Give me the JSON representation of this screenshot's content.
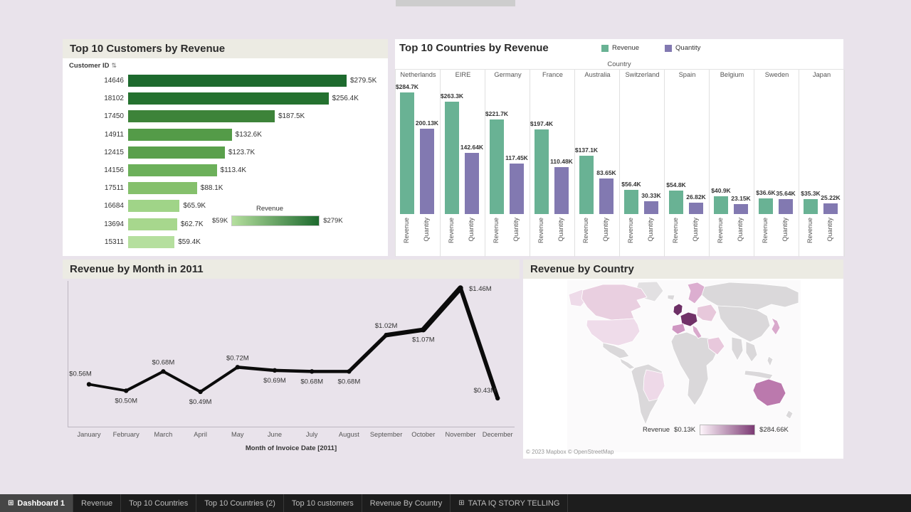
{
  "page": {
    "background": "#e9e3eb",
    "panel_bg": "#ffffff",
    "band_bg": "#ecebe3"
  },
  "icons": {
    "grid": "⊞",
    "sort": "⇅"
  },
  "chart_data": [
    {
      "id": "top-customers",
      "type": "bar",
      "orientation": "horizontal",
      "title": "Top 10 Customers by Revenue",
      "axis_field": "Customer ID",
      "categories": [
        "14646",
        "18102",
        "17450",
        "14911",
        "12415",
        "14156",
        "17511",
        "16684",
        "13694",
        "15311"
      ],
      "values": [
        279.5,
        256.4,
        187.5,
        132.6,
        123.7,
        113.4,
        88.1,
        65.9,
        62.7,
        59.4
      ],
      "value_labels": [
        "$279.5K",
        "$256.4K",
        "$187.5K",
        "$132.6K",
        "$123.7K",
        "$113.4K",
        "$88.1K",
        "$65.9K",
        "$62.7K",
        "$59.4K"
      ],
      "xmax": 279.5,
      "bar_colors": [
        "#1d6a2e",
        "#24712f",
        "#3d8339",
        "#549b48",
        "#5aa04c",
        "#6cb05a",
        "#85c06c",
        "#a0d488",
        "#a7d78d",
        "#b5df9e"
      ],
      "legend": {
        "title": "Revenue",
        "min_label": "$59K",
        "max_label": "$279K",
        "gradient": [
          "#b5df9e",
          "#1d6a2e"
        ]
      }
    },
    {
      "id": "top-countries",
      "type": "grouped-bar",
      "title": "Top 10 Countries by Revenue",
      "group_field": "Country",
      "categories": [
        "Netherlands",
        "EIRE",
        "Germany",
        "France",
        "Australia",
        "Switzerland",
        "Spain",
        "Belgium",
        "Sweden",
        "Japan"
      ],
      "series": [
        {
          "name": "Revenue",
          "color": "#69b294",
          "values": [
            284.7,
            263.3,
            221.7,
            197.4,
            137.1,
            56.4,
            54.8,
            40.9,
            36.6,
            35.3
          ],
          "labels": [
            "$284.7K",
            "$263.3K",
            "$221.7K",
            "$197.4K",
            "$137.1K",
            "$56.4K",
            "$54.8K",
            "$40.9K",
            "$36.6K",
            "$35.3K"
          ]
        },
        {
          "name": "Quantity",
          "color": "#8279b1",
          "values": [
            200.13,
            142.64,
            117.45,
            110.48,
            83.65,
            30.33,
            26.82,
            23.15,
            35.64,
            25.22
          ],
          "labels": [
            "200.13K",
            "142.64K",
            "117.45K",
            "110.48K",
            "83.65K",
            "30.33K",
            "26.82K",
            "23.15K",
            "35.64K",
            "25.22K"
          ]
        }
      ],
      "ymax": 284.7
    },
    {
      "id": "revenue-by-month",
      "type": "line",
      "title": "Revenue by Month in 2011",
      "xlabel": "Month of Invoice Date [2011]",
      "categories": [
        "January",
        "February",
        "March",
        "April",
        "May",
        "June",
        "July",
        "August",
        "September",
        "October",
        "November",
        "December"
      ],
      "values": [
        0.56,
        0.5,
        0.68,
        0.49,
        0.72,
        0.69,
        0.68,
        0.68,
        1.02,
        1.07,
        1.46,
        0.43
      ],
      "value_labels": [
        "$0.56M",
        "$0.50M",
        "$0.68M",
        "$0.49M",
        "$0.72M",
        "$0.69M",
        "$0.68M",
        "$0.68M",
        "$1.02M",
        "$1.07M",
        "$1.46M",
        "$0.43M"
      ],
      "label_positions": [
        "above-left",
        "below",
        "above",
        "below",
        "above",
        "below",
        "below",
        "below",
        "above",
        "below",
        "right",
        "left-above"
      ],
      "line_color": "#0b0b0b",
      "ylim": [
        0.43,
        1.46
      ]
    },
    {
      "id": "revenue-by-country-map",
      "type": "map",
      "title": "Revenue by Country",
      "legend": {
        "title": "Revenue",
        "min_label": "$0.13K",
        "max_label": "$284.66K",
        "gradient": [
          "#fdf4fa",
          "#7c3a74"
        ]
      },
      "attribution": "© 2023 Mapbox © OpenStreetMap"
    }
  ],
  "tabbar": {
    "tabs": [
      {
        "label": "Dashboard 1",
        "icon": true,
        "active": true
      },
      {
        "label": "Revenue"
      },
      {
        "label": "Top 10 Countries"
      },
      {
        "label": "Top 10 Countries (2)"
      },
      {
        "label": "Top 10 customers"
      },
      {
        "label": "Revenue By Country"
      },
      {
        "label": "TATA IQ STORY TELLING",
        "icon": true
      }
    ]
  }
}
